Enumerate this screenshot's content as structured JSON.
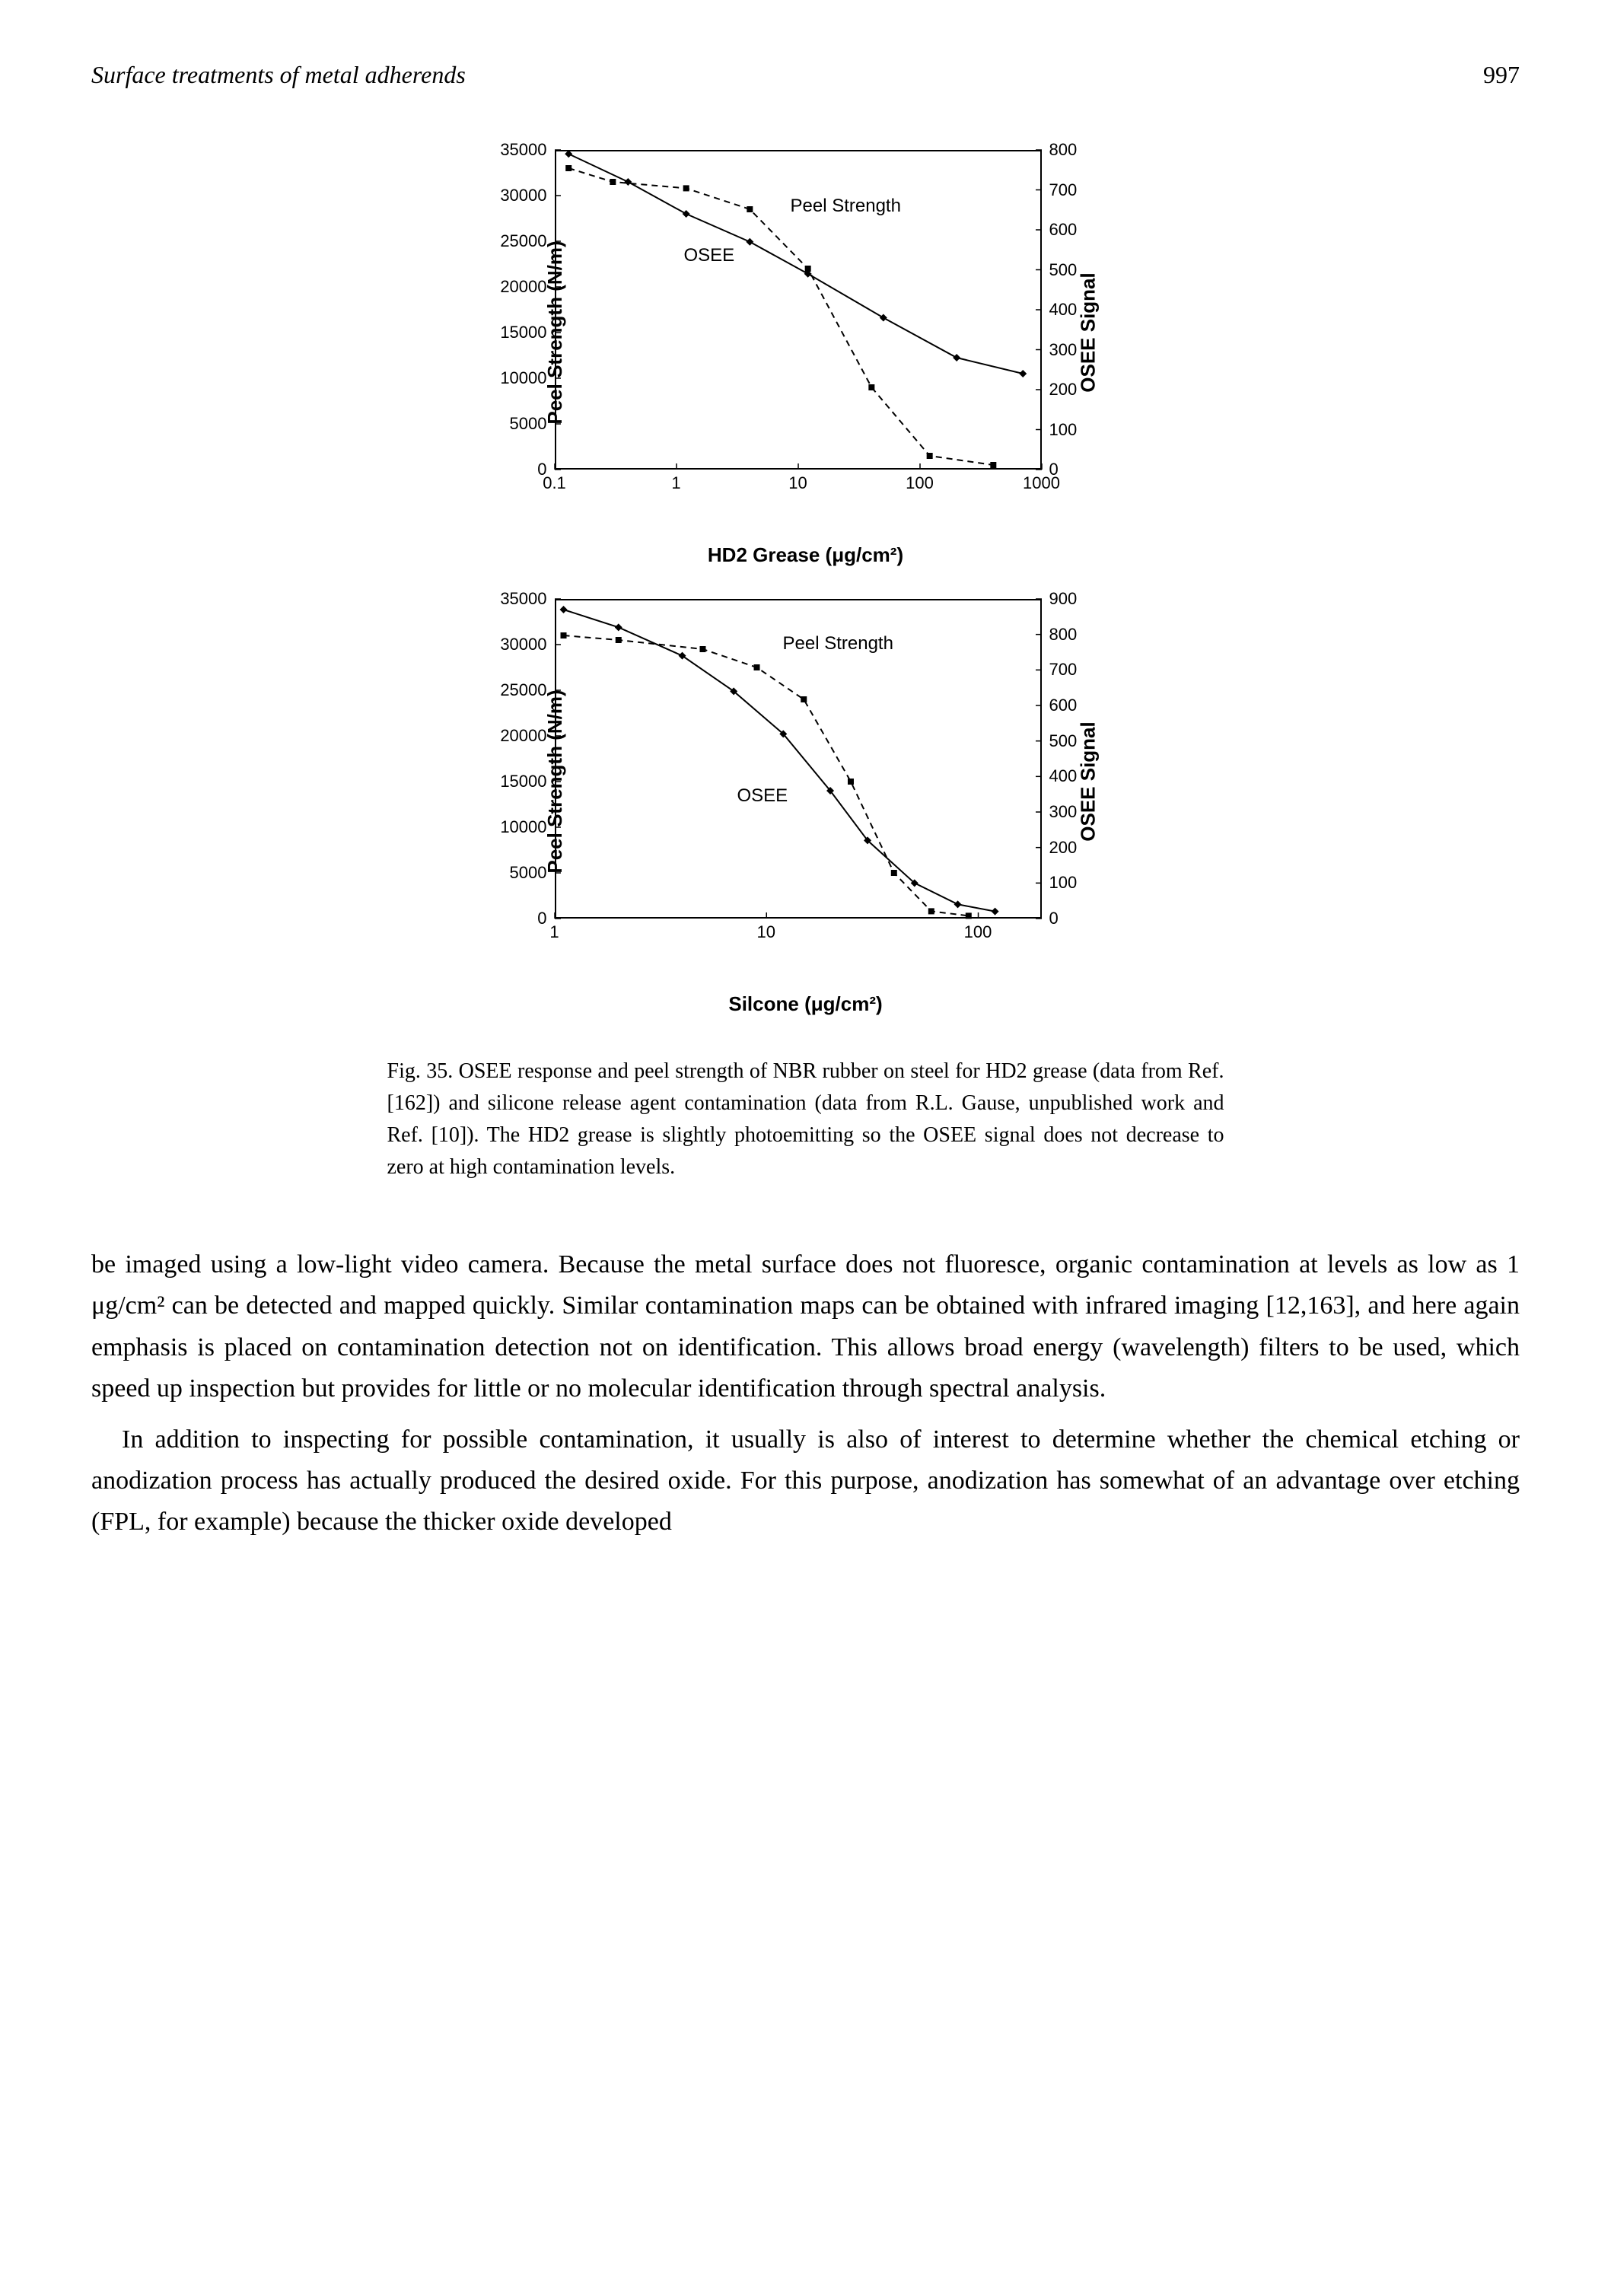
{
  "header": {
    "running_title": "Surface treatments of metal adherends",
    "page_number": "997"
  },
  "chart1": {
    "type": "line-scatter-dual-axis",
    "x_label": "HD2 Grease (μg/cm²)",
    "y1_label": "Peel Strength (N/m)",
    "y2_label": "OSEE Signal",
    "x_scale": "log",
    "x_ticks": [
      "0.1",
      "1",
      "10",
      "100",
      "1000"
    ],
    "y1_ticks": [
      "0",
      "5000",
      "10000",
      "15000",
      "20000",
      "25000",
      "30000",
      "35000"
    ],
    "y2_ticks": [
      "0",
      "100",
      "200",
      "300",
      "400",
      "500",
      "600",
      "700",
      "800"
    ],
    "annotations": {
      "peel_strength": "Peel Strength",
      "osee": "OSEE"
    },
    "series": {
      "peel_strength": {
        "style": "dashed",
        "color": "#000000",
        "markers": "square",
        "data": [
          {
            "x": 0.13,
            "y": 33000
          },
          {
            "x": 0.3,
            "y": 31500
          },
          {
            "x": 1.2,
            "y": 30800
          },
          {
            "x": 4,
            "y": 28500
          },
          {
            "x": 12,
            "y": 22000
          },
          {
            "x": 40,
            "y": 9000
          },
          {
            "x": 120,
            "y": 1500
          },
          {
            "x": 400,
            "y": 500
          }
        ]
      },
      "osee": {
        "style": "solid",
        "color": "#000000",
        "markers": "diamond",
        "data": [
          {
            "x": 0.13,
            "y2": 790
          },
          {
            "x": 0.4,
            "y2": 720
          },
          {
            "x": 1.2,
            "y2": 640
          },
          {
            "x": 4,
            "y2": 570
          },
          {
            "x": 12,
            "y2": 490
          },
          {
            "x": 50,
            "y2": 380
          },
          {
            "x": 200,
            "y2": 280
          },
          {
            "x": 700,
            "y2": 240
          }
        ]
      }
    },
    "y1_range": [
      0,
      35000
    ],
    "y2_range": [
      0,
      800
    ],
    "x_range_log": [
      -1,
      3
    ]
  },
  "chart2": {
    "type": "line-scatter-dual-axis",
    "x_label": "Silcone (μg/cm²)",
    "y1_label": "Peel Strength (N/m)",
    "y2_label": "OSEE Signal",
    "x_scale": "log",
    "x_ticks": [
      "1",
      "10",
      "100"
    ],
    "y1_ticks": [
      "0",
      "5000",
      "10000",
      "15000",
      "20000",
      "25000",
      "30000",
      "35000"
    ],
    "y2_ticks": [
      "0",
      "100",
      "200",
      "300",
      "400",
      "500",
      "600",
      "700",
      "800",
      "900"
    ],
    "annotations": {
      "peel_strength": "Peel Strength",
      "osee": "OSEE"
    },
    "series": {
      "peel_strength": {
        "style": "dashed",
        "color": "#000000",
        "markers": "square",
        "data": [
          {
            "x": 1.1,
            "y": 31000
          },
          {
            "x": 2,
            "y": 30500
          },
          {
            "x": 5,
            "y": 29500
          },
          {
            "x": 9,
            "y": 27500
          },
          {
            "x": 15,
            "y": 24000
          },
          {
            "x": 25,
            "y": 15000
          },
          {
            "x": 40,
            "y": 5000
          },
          {
            "x": 60,
            "y": 800
          },
          {
            "x": 90,
            "y": 300
          }
        ]
      },
      "osee": {
        "style": "solid",
        "color": "#000000",
        "markers": "diamond",
        "data": [
          {
            "x": 1.1,
            "y2": 870
          },
          {
            "x": 2,
            "y2": 820
          },
          {
            "x": 4,
            "y2": 740
          },
          {
            "x": 7,
            "y2": 640
          },
          {
            "x": 12,
            "y2": 520
          },
          {
            "x": 20,
            "y2": 360
          },
          {
            "x": 30,
            "y2": 220
          },
          {
            "x": 50,
            "y2": 100
          },
          {
            "x": 80,
            "y2": 40
          },
          {
            "x": 120,
            "y2": 20
          }
        ]
      }
    },
    "y1_range": [
      0,
      35000
    ],
    "y2_range": [
      0,
      900
    ],
    "x_range_log": [
      0,
      2.3
    ]
  },
  "caption": "Fig. 35. OSEE response and peel strength of NBR rubber on steel for HD2 grease (data from Ref. [162]) and silicone release agent contamination (data from R.L. Gause, unpublished work and Ref. [10]). The HD2 grease is slightly photoemitting so the OSEE signal does not decrease to zero at high contamination levels.",
  "body": {
    "p1": "be imaged using a low-light video camera. Because the metal surface does not fluoresce, organic contamination at levels as low as 1 μg/cm² can be detected and mapped quickly. Similar contamination maps can be obtained with infrared imaging [12,163], and here again emphasis is placed on contamination detection not on identification. This allows broad energy (wavelength) filters to be used, which speed up inspection but provides for little or no molecular identification through spectral analysis.",
    "p2": "In addition to inspecting for possible contamination, it usually is also of interest to determine whether the chemical etching or anodization process has actually produced the desired oxide. For this purpose, anodization has somewhat of an advantage over etching (FPL, for example) because the thicker oxide developed"
  }
}
